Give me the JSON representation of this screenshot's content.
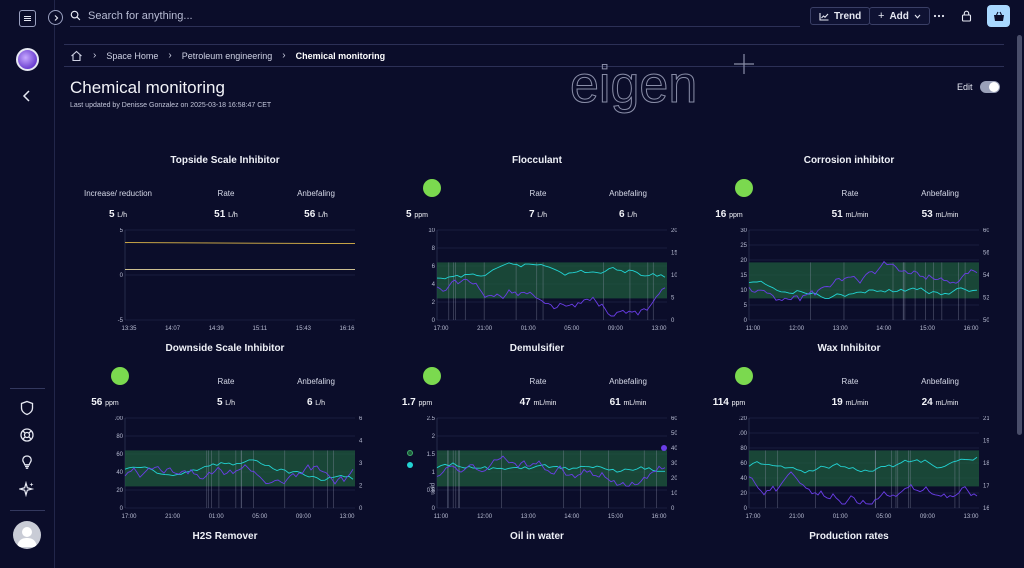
{
  "search": {
    "placeholder": "Search for anything..."
  },
  "toolbar": {
    "trend_label": "Trend",
    "add_label": "Add"
  },
  "breadcrumb": {
    "items": [
      "Space Home",
      "Petroleum engineering"
    ],
    "current": "Chemical monitoring"
  },
  "page": {
    "title": "Chemical monitoring",
    "updated": "Last updated by Denisse Gonzalez on 2025-03-18 16:58:47 CET",
    "logo_text": "eigen",
    "edit_label": "Edit"
  },
  "colors": {
    "background": "#0b0d2a",
    "status_ok": "#7bd94f",
    "band": "#1f5a3c",
    "cyan": "#22d3d3",
    "purple": "#6a3de8",
    "yellow": "#e0b84a"
  },
  "panels": [
    {
      "title": "Topside Scale Inhibitor",
      "metrics": [
        {
          "label": "Increase/ reduction",
          "value": "5",
          "unit": "L/h"
        },
        {
          "label": "Rate",
          "value": "51",
          "unit": "L/h"
        },
        {
          "label": "Anbefaling",
          "value": "56",
          "unit": "L/h"
        }
      ],
      "chart": {
        "left_ticks": [
          "5",
          "0",
          "-5"
        ],
        "right_ticks": [],
        "x_ticks": [
          "13:35",
          "14:07",
          "14:39",
          "15:11",
          "15:43",
          "16:16"
        ]
      }
    },
    {
      "title": "Flocculant",
      "metrics": [
        {
          "label": "",
          "value": "5",
          "unit": "ppm"
        },
        {
          "label": "Rate",
          "value": "7",
          "unit": "L/h"
        },
        {
          "label": "Anbefaling",
          "value": "6",
          "unit": "L/h"
        }
      ],
      "chart": {
        "left_ticks": [
          "10",
          "8",
          "6",
          "4",
          "2",
          "0"
        ],
        "right_ticks": [
          "20",
          "15",
          "10",
          "5",
          "0"
        ],
        "x_ticks": [
          "17:00",
          "21:00",
          "01:00",
          "05:00",
          "09:00",
          "13:00"
        ]
      }
    },
    {
      "title": "Corrosion inhibitor",
      "metrics": [
        {
          "label": "",
          "value": "16",
          "unit": "ppm"
        },
        {
          "label": "Rate",
          "value": "51",
          "unit": "mL/min"
        },
        {
          "label": "Anbefaling",
          "value": "53",
          "unit": "mL/min"
        }
      ],
      "chart": {
        "left_ticks": [
          "30",
          "25",
          "20",
          "15",
          "10",
          "5",
          "0"
        ],
        "right_ticks": [
          "60",
          "56",
          "54",
          "52",
          "50"
        ],
        "x_ticks": [
          "11:00",
          "12:00",
          "13:00",
          "14:00",
          "15:00",
          "16:00"
        ]
      }
    },
    {
      "title": "Downside Scale Inhibitor",
      "metrics": [
        {
          "label": "",
          "value": "56",
          "unit": "ppm"
        },
        {
          "label": "Rate",
          "value": "5",
          "unit": "L/h"
        },
        {
          "label": "Anbefaling",
          "value": "6",
          "unit": "L/h"
        }
      ],
      "chart": {
        "left_ticks": [
          "100",
          "80",
          "60",
          "40",
          "20",
          "0"
        ],
        "right_ticks": [
          "6",
          "4",
          "3",
          "2",
          "0"
        ],
        "x_ticks": [
          "17:00",
          "21:00",
          "01:00",
          "05:00",
          "09:00",
          "13:00"
        ]
      }
    },
    {
      "title": "Demulsifier",
      "metrics": [
        {
          "label": "",
          "value": "1.7",
          "unit": "ppm"
        },
        {
          "label": "Rate",
          "value": "47",
          "unit": "mL/min"
        },
        {
          "label": "Anbefaling",
          "value": "61",
          "unit": "mL/min"
        }
      ],
      "chart": {
        "left_ticks": [
          "2.5",
          "2",
          "1.5",
          "1",
          "0.5",
          "0"
        ],
        "right_ticks": [
          "60",
          "50",
          "40",
          "30",
          "20",
          "10",
          "0"
        ],
        "x_ticks": [
          "11:00",
          "12:00",
          "13:00",
          "14:00",
          "15:00",
          "16:00"
        ],
        "left_unit": "ppm",
        "right_unit": "mL/min"
      }
    },
    {
      "title": "Wax Inhibitor",
      "metrics": [
        {
          "label": "",
          "value": "114",
          "unit": "ppm"
        },
        {
          "label": "Rate",
          "value": "19",
          "unit": "mL/min"
        },
        {
          "label": "Anbefaling",
          "value": "24",
          "unit": "mL/min"
        }
      ],
      "chart": {
        "left_ticks": [
          "120",
          "100",
          "80",
          "60",
          "40",
          "20",
          "0"
        ],
        "right_ticks": [
          "21",
          "19",
          "18",
          "17",
          "16"
        ],
        "x_ticks": [
          "17:00",
          "21:00",
          "01:00",
          "05:00",
          "09:00",
          "13:00"
        ]
      }
    }
  ],
  "bottom_titles": [
    "H2S Remover",
    "Oil in water",
    "Production rates"
  ]
}
